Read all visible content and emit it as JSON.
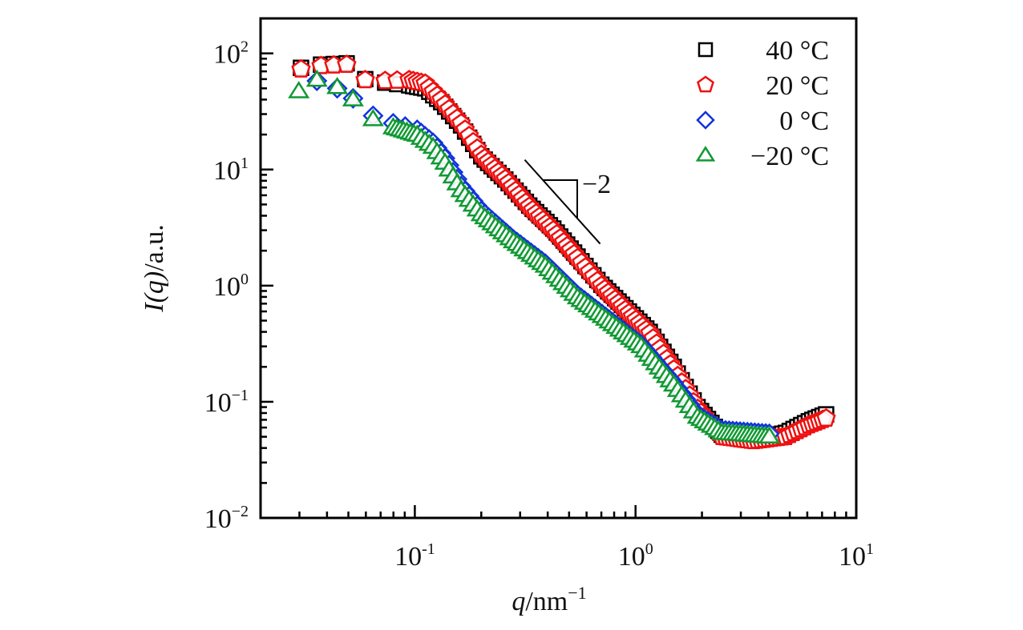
{
  "chart_data": {
    "type": "scatter",
    "title": "",
    "xlabel": "q/nm^-1",
    "xlabel_parts": {
      "var": "q",
      "unit": "/nm",
      "exp": "−1"
    },
    "ylabel": "I(q)/a.u.",
    "ylabel_parts": {
      "var": "I(q)",
      "unit": "/a.u."
    },
    "xscale": "log",
    "yscale": "log",
    "xlim": [
      0.02,
      10
    ],
    "ylim": [
      0.01,
      200
    ],
    "x_ticks": [
      {
        "value": 0.1,
        "base": "10",
        "exp": "-1"
      },
      {
        "value": 1,
        "base": "10",
        "exp": "0"
      },
      {
        "value": 10,
        "base": "10",
        "exp": "1"
      }
    ],
    "y_ticks": [
      {
        "value": 100,
        "base": "10",
        "exp": "2"
      },
      {
        "value": 10,
        "base": "10",
        "exp": "1"
      },
      {
        "value": 1,
        "base": "10",
        "exp": "0"
      },
      {
        "value": 0.1,
        "base": "10",
        "exp": "−1"
      },
      {
        "value": 0.01,
        "base": "10",
        "exp": "−2"
      }
    ],
    "grid": false,
    "legend_position": "top-right",
    "annotation": {
      "text": "−2",
      "description": "slope triangle indicating power-law exponent -2",
      "q_range": [
        0.32,
        0.68
      ]
    },
    "series": [
      {
        "name": "40 °C",
        "marker": "square",
        "color": "#000000",
        "points": [
          [
            0.0305,
            75
          ],
          [
            0.0376,
            80
          ],
          [
            0.0491,
            82
          ],
          [
            0.0596,
            60
          ],
          [
            0.0734,
            56
          ],
          [
            0.0943,
            53
          ],
          [
            0.1115,
            50
          ],
          [
            0.1317,
            38
          ],
          [
            0.162,
            24
          ],
          [
            0.2,
            13
          ],
          [
            0.257,
            8.2
          ],
          [
            0.33,
            4.9
          ],
          [
            0.424,
            3.1
          ],
          [
            0.546,
            1.78
          ],
          [
            0.7,
            1.02
          ],
          [
            0.9,
            0.64
          ],
          [
            1.16,
            0.4
          ],
          [
            1.49,
            0.2
          ],
          [
            1.91,
            0.09
          ],
          [
            2.46,
            0.052
          ],
          [
            3.43,
            0.047
          ],
          [
            4.8,
            0.054
          ],
          [
            6.1,
            0.068
          ],
          [
            7.3,
            0.078
          ]
        ]
      },
      {
        "name": "20 °C",
        "marker": "pentagon",
        "color": "#ee1111",
        "points": [
          [
            0.0305,
            73
          ],
          [
            0.0376,
            78
          ],
          [
            0.0491,
            80
          ],
          [
            0.0596,
            59
          ],
          [
            0.0734,
            58
          ],
          [
            0.0943,
            59
          ],
          [
            0.1115,
            55
          ],
          [
            0.1317,
            40
          ],
          [
            0.162,
            25
          ],
          [
            0.2,
            13.4
          ],
          [
            0.257,
            8.3
          ],
          [
            0.33,
            4.8
          ],
          [
            0.424,
            3.0
          ],
          [
            0.546,
            1.73
          ],
          [
            0.7,
            1.0
          ],
          [
            0.9,
            0.62
          ],
          [
            1.16,
            0.39
          ],
          [
            1.49,
            0.19
          ],
          [
            1.91,
            0.087
          ],
          [
            2.46,
            0.05
          ],
          [
            3.43,
            0.046
          ],
          [
            4.8,
            0.05
          ],
          [
            6.1,
            0.063
          ],
          [
            7.3,
            0.072
          ]
        ]
      },
      {
        "name": "0 °C",
        "marker": "diamond",
        "color": "#1133dd",
        "points": [
          [
            0.036,
            58
          ],
          [
            0.0445,
            50
          ],
          [
            0.0525,
            41
          ],
          [
            0.0647,
            29
          ],
          [
            0.0798,
            25
          ],
          [
            0.1025,
            22
          ],
          [
            0.121,
            17
          ],
          [
            0.137,
            12.5
          ],
          [
            0.162,
            7.2
          ],
          [
            0.2,
            4.4
          ],
          [
            0.28,
            2.5
          ],
          [
            0.39,
            1.55
          ],
          [
            0.546,
            0.83
          ],
          [
            0.76,
            0.51
          ],
          [
            1.06,
            0.31
          ],
          [
            1.49,
            0.145
          ],
          [
            1.91,
            0.077
          ],
          [
            2.46,
            0.057
          ],
          [
            4.04,
            0.053
          ]
        ]
      },
      {
        "name": "−20 °C",
        "marker": "triangle",
        "color": "#119933",
        "points": [
          [
            0.0298,
            47
          ],
          [
            0.036,
            59
          ],
          [
            0.0445,
            51
          ],
          [
            0.0525,
            40
          ],
          [
            0.0647,
            27
          ],
          [
            0.0798,
            23
          ],
          [
            0.1025,
            19.8
          ],
          [
            0.121,
            15.6
          ],
          [
            0.137,
            11.4
          ],
          [
            0.162,
            6.6
          ],
          [
            0.2,
            4.1
          ],
          [
            0.28,
            2.4
          ],
          [
            0.39,
            1.48
          ],
          [
            0.546,
            0.79
          ],
          [
            0.76,
            0.49
          ],
          [
            1.06,
            0.3
          ],
          [
            1.49,
            0.14
          ],
          [
            1.91,
            0.074
          ],
          [
            2.46,
            0.054
          ],
          [
            4.04,
            0.05
          ]
        ]
      }
    ]
  }
}
